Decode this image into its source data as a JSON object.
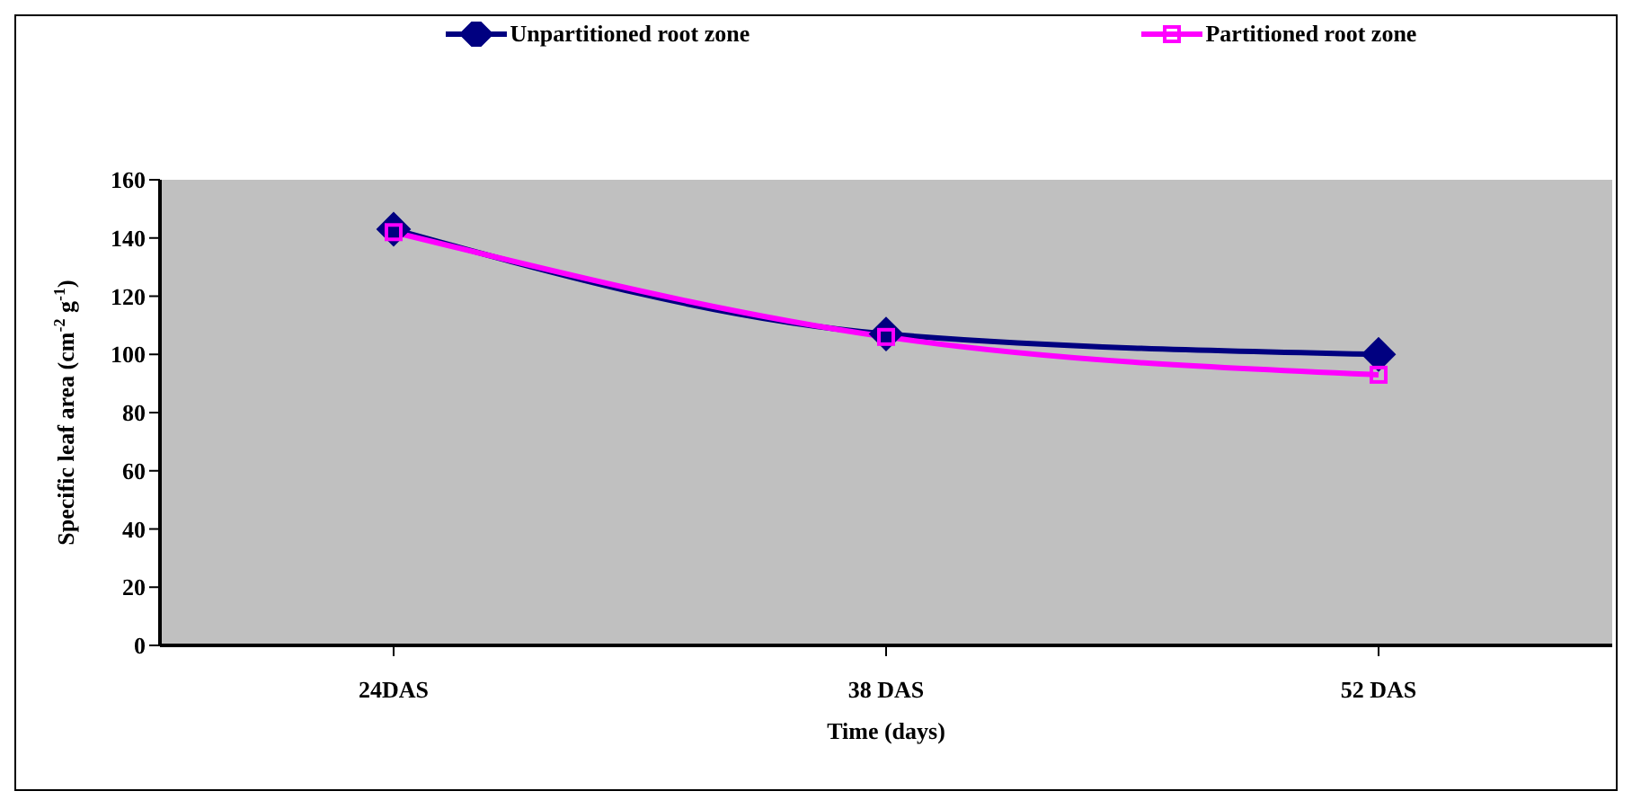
{
  "chart_data": {
    "type": "line",
    "xlabel": "Time (days)",
    "ylabel": "Specific leaf area (cm$^{-2}$ g$^{-1}$)",
    "categories": [
      "24DAS",
      "38 DAS",
      "52 DAS"
    ],
    "series": [
      {
        "name": "Unpartitioned root zone",
        "color": "#000080",
        "values": [
          143,
          107,
          100
        ],
        "marker": "diamond"
      },
      {
        "name": "Partitioned root zone",
        "color": "#ff00ff",
        "values": [
          142,
          106,
          93
        ],
        "marker": "square"
      }
    ],
    "ylim": [
      0,
      160
    ],
    "yticks": [
      0,
      20,
      40,
      60,
      80,
      100,
      120,
      140,
      160
    ],
    "grid": false,
    "legend": "top"
  }
}
